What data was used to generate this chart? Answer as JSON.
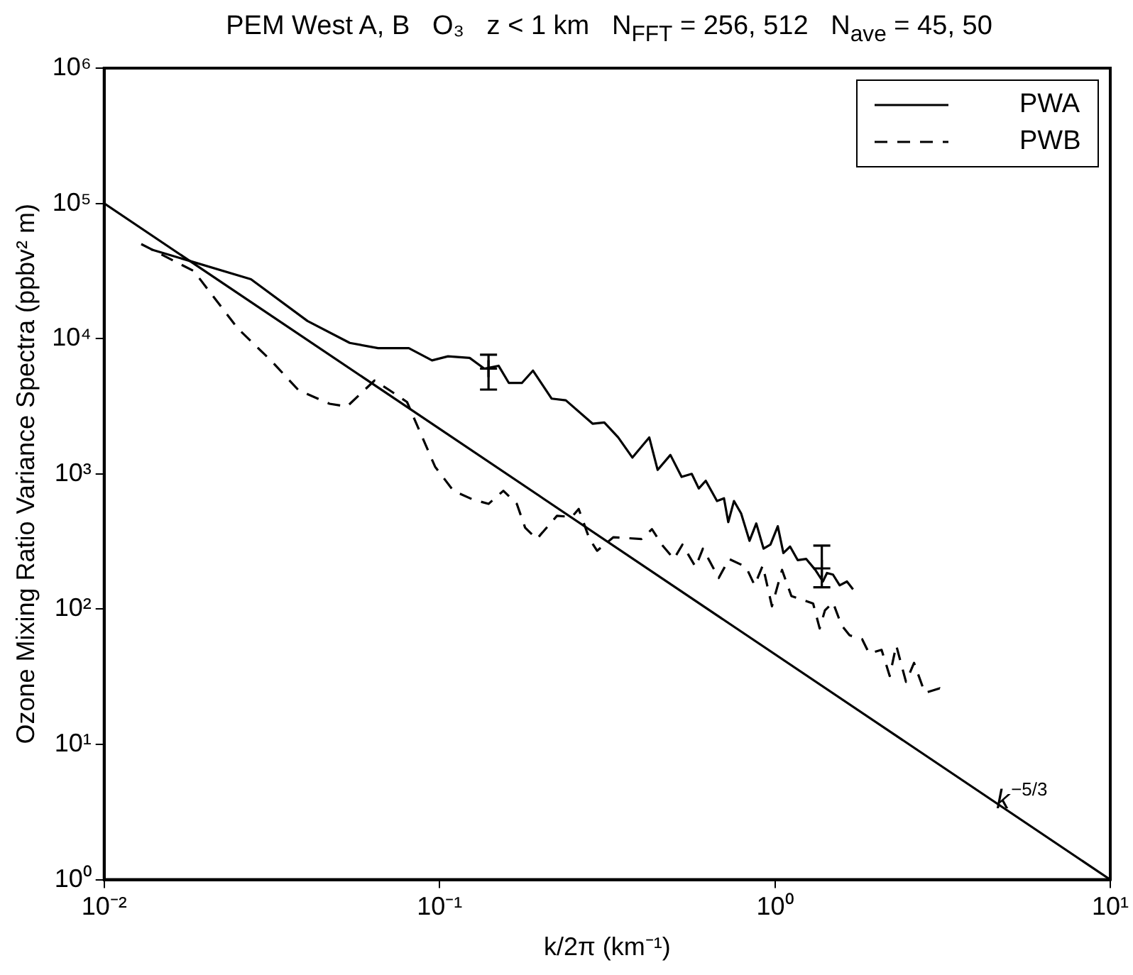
{
  "chart_data": {
    "type": "line",
    "title": "PEM West A, B   O₃   z < 1 km   N$_{FFT}$ = 256, 512   N$_{ave}$ = 45, 50",
    "xlabel": "k/2π (km⁻¹)",
    "ylabel": "Ozone Mixing Ratio Variance Spectra (ppbv² m)",
    "log": "xy",
    "grid": false,
    "legend": "top right",
    "marker": "none",
    "xlim": [
      0.01,
      10
    ],
    "xticks": [
      {
        "value": 0.01,
        "label": "10⁻²"
      },
      {
        "value": 0.1,
        "label": "10⁻¹"
      },
      {
        "value": 1,
        "label": "10⁰"
      },
      {
        "value": 10,
        "label": "10¹"
      }
    ],
    "ylim": [
      1,
      1000000
    ],
    "yticks": [
      {
        "value": 1,
        "label": "10⁰"
      },
      {
        "value": 10,
        "label": "10¹"
      },
      {
        "value": 100,
        "label": "10²"
      },
      {
        "value": 1000,
        "label": "10³"
      },
      {
        "value": 10000,
        "label": "10⁴"
      },
      {
        "value": 100000,
        "label": "10⁵"
      },
      {
        "value": 1000000,
        "label": "10⁶"
      }
    ],
    "annotations": [
      {
        "text": "k$^{−5/3}$",
        "x": 6,
        "y": 2.3
      }
    ],
    "series": [
      {
        "name": "PWA",
        "color": "#000000",
        "line_style": "solid",
        "x": [
          0.0138,
          0.0274,
          0.0404,
          0.054,
          0.0656,
          0.081,
          0.095,
          0.106,
          0.123,
          0.136,
          0.15,
          0.161,
          0.176,
          0.19,
          0.216,
          0.238,
          0.286,
          0.31,
          0.341,
          0.376,
          0.422,
          0.447,
          0.488,
          0.527,
          0.565,
          0.593,
          0.622,
          0.672,
          0.705,
          0.726,
          0.755,
          0.793,
          0.84,
          0.88,
          0.925,
          0.97,
          1.02,
          1.06,
          1.11,
          1.17,
          1.24,
          1.32,
          1.39,
          1.43,
          1.49,
          1.56,
          1.64,
          1.71
        ],
        "values": [
          45700,
          27500,
          13500,
          9300,
          8500,
          8500,
          6900,
          7400,
          7200,
          6000,
          6300,
          4700,
          4700,
          5800,
          3600,
          3500,
          2350,
          2400,
          1860,
          1320,
          1860,
          1070,
          1380,
          950,
          1000,
          780,
          890,
          630,
          660,
          440,
          630,
          510,
          320,
          430,
          280,
          300,
          410,
          260,
          290,
          230,
          235,
          195,
          160,
          185,
          180,
          150,
          160,
          140
        ]
      },
      {
        "name": "PWB",
        "color": "#000000",
        "line_style": "dashed",
        "x": [
          0.0129,
          0.0185,
          0.0251,
          0.0316,
          0.038,
          0.047,
          0.053,
          0.064,
          0.071,
          0.08,
          0.097,
          0.11,
          0.125,
          0.14,
          0.155,
          0.17,
          0.18,
          0.195,
          0.224,
          0.248,
          0.26,
          0.28,
          0.295,
          0.33,
          0.4,
          0.43,
          0.46,
          0.5,
          0.53,
          0.58,
          0.61,
          0.68,
          0.73,
          0.82,
          0.87,
          0.92,
          0.98,
          1.05,
          1.12,
          1.3,
          1.36,
          1.41,
          1.49,
          1.58,
          1.67,
          1.82,
          1.91,
          2.08,
          2.2,
          2.3,
          2.46,
          2.6,
          2.8,
          3.1,
          3.2
        ],
        "values": [
          50000,
          31600,
          11800,
          6800,
          4150,
          3300,
          3150,
          4900,
          4150,
          3400,
          1130,
          750,
          650,
          600,
          750,
          600,
          400,
          330,
          490,
          480,
          550,
          330,
          270,
          340,
          330,
          390,
          300,
          235,
          300,
          205,
          280,
          170,
          235,
          205,
          150,
          210,
          105,
          195,
          125,
          110,
          72,
          98,
          112,
          76,
          64,
          60,
          47,
          50,
          32,
          54,
          29,
          40,
          24,
          26,
          24
        ]
      },
      {
        "type": "line",
        "color": "#000000",
        "line_style": "solid",
        "x": [
          0.01,
          10
        ],
        "values": [
          100000,
          1
        ]
      },
      {
        "type": "scatter",
        "color": "#000000",
        "marker": "cross",
        "x": [
          0.14,
          1.38
        ],
        "values": [
          6000,
          200
        ],
        "errors": [
          [
            4200,
            7600
          ],
          [
            145,
            295
          ]
        ]
      }
    ]
  }
}
